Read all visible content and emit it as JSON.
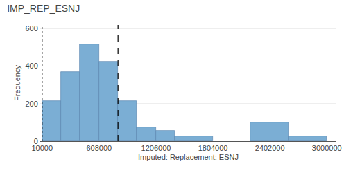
{
  "chart_data": {
    "type": "bar",
    "title": "IMP_REP_ESNJ",
    "xlabel": "Imputed: Replacement: ESNJ",
    "ylabel": "Frequency",
    "x": [
      10000,
      209000,
      408000,
      607000,
      806000,
      1005000,
      1204000,
      1403000,
      2200000,
      2598000
    ],
    "widths": [
      199000,
      199000,
      199000,
      199000,
      199000,
      199000,
      199000,
      399000,
      398000,
      400000
    ],
    "values": [
      215,
      370,
      515,
      425,
      215,
      75,
      55,
      25,
      100,
      25
    ],
    "color": "#7baed4",
    "vlines": [
      {
        "x": 10000,
        "line_style": "dotted"
      },
      {
        "x": 807000,
        "line_style": "dashed"
      }
    ],
    "xlim": [
      -10000,
      3100000
    ],
    "xticks": [
      10000,
      608000,
      1206000,
      1804000,
      2402000,
      3000000
    ],
    "ylim": [
      0,
      620
    ],
    "yticks": [
      0,
      200,
      400,
      600
    ],
    "grid": true
  }
}
